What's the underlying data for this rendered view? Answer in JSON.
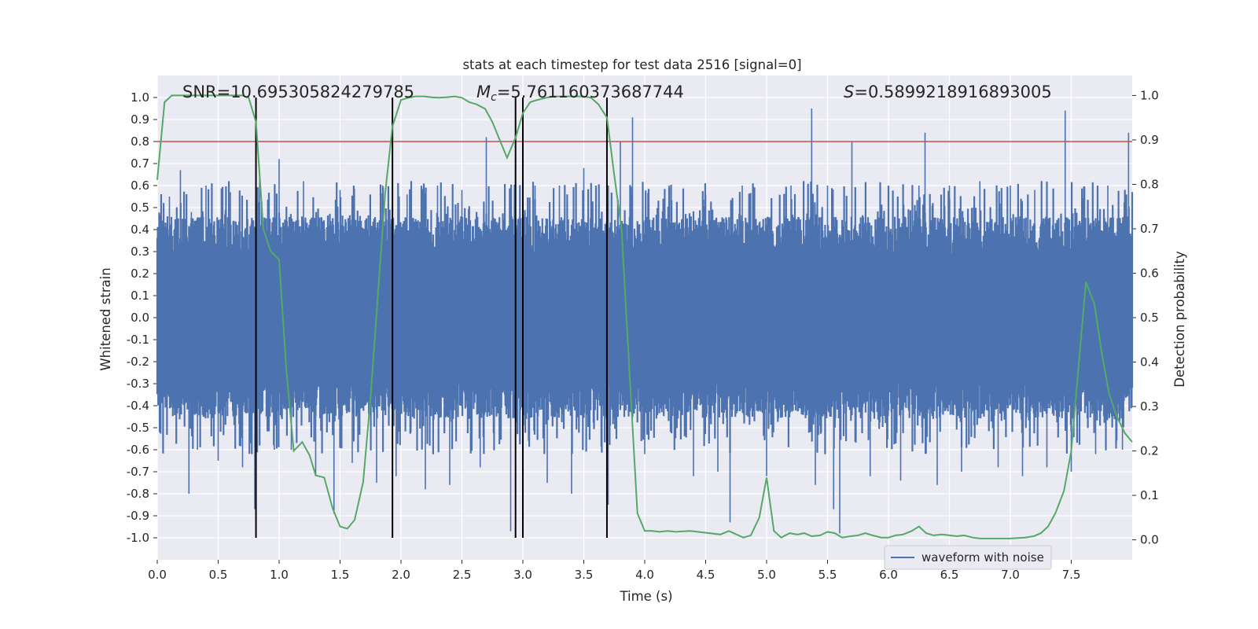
{
  "chart_data": {
    "type": "line",
    "title": "stats at each timestep for test data 2516 [signal=0]",
    "xlabel": "Time (s)",
    "ylabel_left": "Whitened strain",
    "ylabel_right": "Detection probability",
    "xlim": [
      0.0,
      8.0
    ],
    "ylim_left": [
      -1.1,
      1.1
    ],
    "ylim_right": [
      -0.045,
      1.045
    ],
    "x_ticks": [
      "0.0",
      "0.5",
      "1.0",
      "1.5",
      "2.0",
      "2.5",
      "3.0",
      "3.5",
      "4.0",
      "4.5",
      "5.0",
      "5.5",
      "6.0",
      "6.5",
      "7.0",
      "7.5"
    ],
    "y_left_ticks": [
      "1.0",
      "0.9",
      "0.8",
      "0.7",
      "0.6",
      "0.5",
      "0.4",
      "0.3",
      "0.2",
      "0.1",
      "0.0",
      "-0.1",
      "-0.2",
      "-0.3",
      "-0.4",
      "-0.5",
      "-0.6",
      "-0.7",
      "-0.8",
      "-0.9",
      "-1.0"
    ],
    "y_right_ticks": [
      "1.0",
      "0.9",
      "0.8",
      "0.7",
      "0.6",
      "0.5",
      "0.4",
      "0.3",
      "0.2",
      "0.1",
      "0.0"
    ],
    "annotations": {
      "snr_prefix": "SNR=",
      "snr_value": "10.695305824279785",
      "mc_symbol": "M",
      "mc_subscript": "c",
      "mc_value": "=5.761160373687744",
      "s_symbol": "S",
      "s_value": "=0.5899218916893005"
    },
    "threshold": {
      "value": 0.8,
      "axis": "left",
      "color": "#c44e52"
    },
    "vertical_lines_x": [
      0.81,
      1.93,
      2.94,
      3.0,
      3.69
    ],
    "waveform": {
      "name": "waveform with noise",
      "color": "#4c72b0",
      "typical_band": [
        -0.4,
        0.4
      ],
      "spikes": [
        [
          0.03,
          0.25
        ],
        [
          0.1,
          0.55
        ],
        [
          0.19,
          0.67
        ],
        [
          0.26,
          -0.8
        ],
        [
          0.28,
          0.48
        ],
        [
          0.33,
          -0.6
        ],
        [
          0.4,
          0.6
        ],
        [
          0.5,
          -0.65
        ],
        [
          0.6,
          0.57
        ],
        [
          0.7,
          -0.68
        ],
        [
          0.8,
          -0.87
        ],
        [
          0.84,
          0.66
        ],
        [
          0.96,
          -0.6
        ],
        [
          1.0,
          0.72
        ],
        [
          1.1,
          -0.6
        ],
        [
          1.2,
          0.62
        ],
        [
          1.3,
          -0.72
        ],
        [
          1.45,
          -0.89
        ],
        [
          1.5,
          0.58
        ],
        [
          1.6,
          -0.66
        ],
        [
          1.8,
          -0.75
        ],
        [
          1.85,
          0.6
        ],
        [
          1.96,
          -0.72
        ],
        [
          2.05,
          0.56
        ],
        [
          2.2,
          -0.78
        ],
        [
          2.3,
          0.6
        ],
        [
          2.4,
          -0.76
        ],
        [
          2.5,
          0.58
        ],
        [
          2.65,
          -0.68
        ],
        [
          2.7,
          0.82
        ],
        [
          2.9,
          -0.97
        ],
        [
          2.94,
          0.68
        ],
        [
          3.0,
          -0.68
        ],
        [
          3.1,
          0.6
        ],
        [
          3.2,
          -0.75
        ],
        [
          3.3,
          0.6
        ],
        [
          3.4,
          -0.8
        ],
        [
          3.5,
          0.68
        ],
        [
          3.7,
          -0.85
        ],
        [
          3.8,
          0.8
        ],
        [
          3.9,
          0.91
        ],
        [
          4.0,
          -0.62
        ],
        [
          4.2,
          0.6
        ],
        [
          4.4,
          -0.72
        ],
        [
          4.5,
          0.56
        ],
        [
          4.6,
          -0.7
        ],
        [
          4.7,
          -0.93
        ],
        [
          4.8,
          0.6
        ],
        [
          5.0,
          -0.72
        ],
        [
          5.2,
          0.6
        ],
        [
          5.37,
          0.95
        ],
        [
          5.4,
          -0.76
        ],
        [
          5.5,
          0.6
        ],
        [
          5.55,
          -0.87
        ],
        [
          5.6,
          -0.98
        ],
        [
          5.7,
          0.8
        ],
        [
          5.85,
          -0.72
        ],
        [
          6.0,
          0.6
        ],
        [
          6.1,
          -0.74
        ],
        [
          6.25,
          0.6
        ],
        [
          6.3,
          0.84
        ],
        [
          6.4,
          -0.76
        ],
        [
          6.5,
          0.6
        ],
        [
          6.6,
          -0.7
        ],
        [
          6.75,
          0.62
        ],
        [
          6.9,
          -0.68
        ],
        [
          7.0,
          0.6
        ],
        [
          7.1,
          -0.72
        ],
        [
          7.2,
          0.58
        ],
        [
          7.3,
          -0.68
        ],
        [
          7.45,
          0.94
        ],
        [
          7.5,
          -0.7
        ],
        [
          7.7,
          -0.62
        ],
        [
          7.8,
          0.6
        ],
        [
          7.92,
          -0.6
        ],
        [
          7.97,
          0.84
        ]
      ]
    },
    "detection_probability": {
      "color": "#55a868",
      "x": [
        0.0,
        0.06,
        0.12,
        0.2,
        0.3,
        0.4,
        0.5,
        0.6,
        0.7,
        0.75,
        0.81,
        0.87,
        0.93,
        1.0,
        1.06,
        1.12,
        1.19,
        1.25,
        1.3,
        1.37,
        1.44,
        1.5,
        1.56,
        1.62,
        1.69,
        1.75,
        1.81,
        1.87,
        1.93,
        2.0,
        2.06,
        2.12,
        2.19,
        2.25,
        2.31,
        2.37,
        2.44,
        2.5,
        2.56,
        2.62,
        2.69,
        2.75,
        2.81,
        2.87,
        2.94,
        3.0,
        3.06,
        3.12,
        3.19,
        3.25,
        3.31,
        3.37,
        3.44,
        3.5,
        3.56,
        3.62,
        3.69,
        3.75,
        3.81,
        3.87,
        3.94,
        4.0,
        4.06,
        4.12,
        4.19,
        4.25,
        4.37,
        4.5,
        4.62,
        4.69,
        4.81,
        4.87,
        4.94,
        5.0,
        5.06,
        5.12,
        5.19,
        5.25,
        5.31,
        5.37,
        5.44,
        5.5,
        5.56,
        5.62,
        5.69,
        5.75,
        5.81,
        5.87,
        5.94,
        6.0,
        6.06,
        6.12,
        6.19,
        6.25,
        6.31,
        6.37,
        6.44,
        6.5,
        6.56,
        6.62,
        6.69,
        6.75,
        6.87,
        7.0,
        7.12,
        7.19,
        7.25,
        7.31,
        7.37,
        7.44,
        7.5,
        7.56,
        7.62,
        7.69,
        7.75,
        7.81,
        7.87,
        7.94,
        8.0
      ],
      "y": [
        0.81,
        0.985,
        1.0,
        1.0,
        1.0,
        1.0,
        1.0,
        1.0,
        1.0,
        0.995,
        0.94,
        0.7,
        0.65,
        0.63,
        0.38,
        0.2,
        0.22,
        0.19,
        0.145,
        0.14,
        0.07,
        0.03,
        0.025,
        0.045,
        0.13,
        0.32,
        0.55,
        0.78,
        0.93,
        0.99,
        0.995,
        0.998,
        0.998,
        0.996,
        0.995,
        0.996,
        0.998,
        0.995,
        0.985,
        0.98,
        0.97,
        0.94,
        0.9,
        0.86,
        0.905,
        0.96,
        0.985,
        0.99,
        0.995,
        0.998,
        0.998,
        0.998,
        0.998,
        0.998,
        0.995,
        0.98,
        0.95,
        0.82,
        0.7,
        0.4,
        0.06,
        0.02,
        0.02,
        0.018,
        0.02,
        0.018,
        0.02,
        0.016,
        0.012,
        0.02,
        0.005,
        0.01,
        0.05,
        0.14,
        0.02,
        0.005,
        0.015,
        0.012,
        0.015,
        0.008,
        0.01,
        0.018,
        0.015,
        0.005,
        0.008,
        0.01,
        0.015,
        0.01,
        0.005,
        0.005,
        0.01,
        0.012,
        0.02,
        0.03,
        0.015,
        0.01,
        0.012,
        0.01,
        0.008,
        0.01,
        0.005,
        0.003,
        0.003,
        0.003,
        0.005,
        0.008,
        0.015,
        0.03,
        0.06,
        0.11,
        0.2,
        0.39,
        0.58,
        0.53,
        0.42,
        0.33,
        0.28,
        0.24,
        0.22
      ]
    },
    "legend": {
      "label": "waveform with noise",
      "placement": "lower-right"
    },
    "grid": true
  }
}
